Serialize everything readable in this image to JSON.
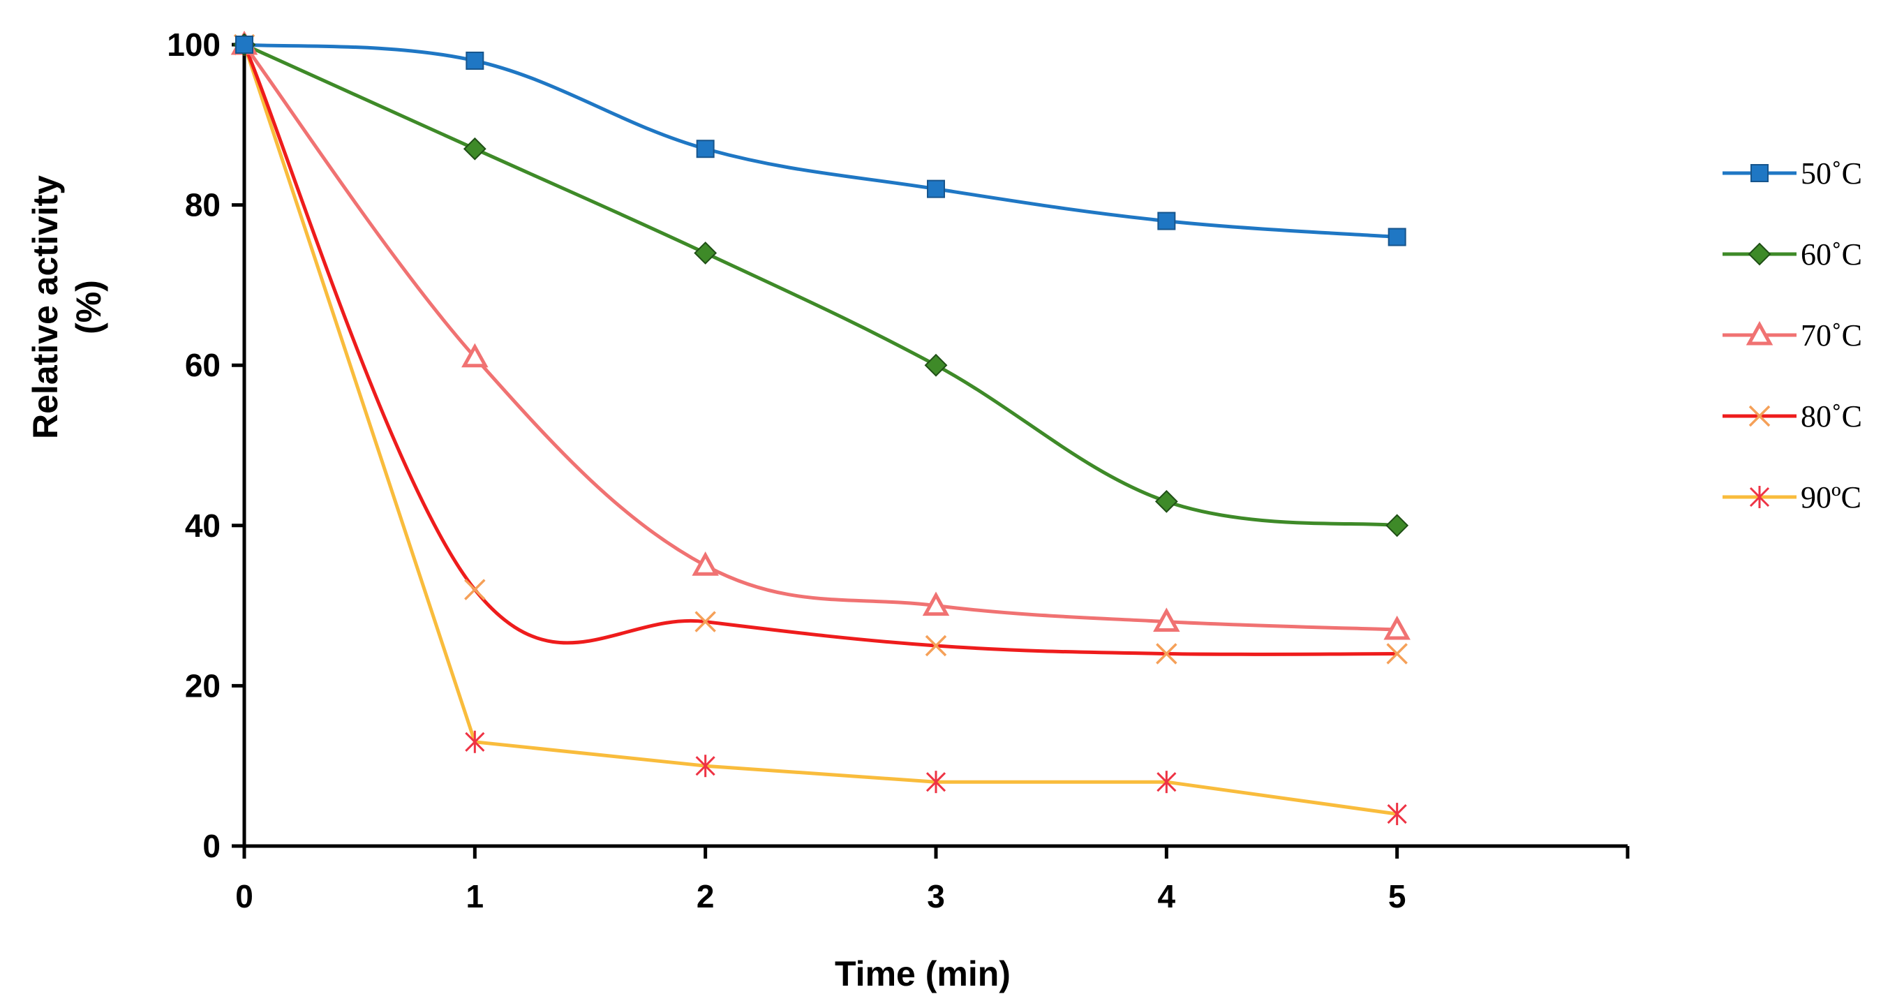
{
  "chart_data": {
    "type": "line",
    "title": "",
    "xlabel": "Time (min)",
    "ylabel_lines": [
      "Relative activity",
      "(%)"
    ],
    "x": [
      0,
      1,
      2,
      3,
      4,
      5
    ],
    "x_ticks": [
      "0",
      "1",
      "2",
      "3",
      "4",
      "5"
    ],
    "y_ticks": [
      "0",
      "20",
      "40",
      "60",
      "80",
      "100"
    ],
    "xlim": [
      0,
      6
    ],
    "ylim": [
      0,
      100
    ],
    "grid": false,
    "legend_position": "right",
    "series": [
      {
        "name": "50˚C",
        "values": [
          100,
          98,
          87,
          82,
          78,
          76
        ],
        "color": "#1f77c4",
        "marker": "square",
        "marker_color": "#1f77c4",
        "smooth": true
      },
      {
        "name": "60˚C",
        "values": [
          100,
          87,
          74,
          60,
          43,
          40
        ],
        "color": "#3e8a28",
        "marker": "diamond",
        "marker_color": "#3e8a28",
        "smooth": true
      },
      {
        "name": "70˚C",
        "values": [
          100,
          61,
          35,
          30,
          28,
          27
        ],
        "color": "#f07272",
        "marker": "triangle",
        "marker_color": "#f07272",
        "smooth": true
      },
      {
        "name": "80˚C",
        "values": [
          100,
          32,
          28,
          25,
          24,
          24
        ],
        "color": "#ee1c1c",
        "marker": "x",
        "marker_color": "#f5a058",
        "smooth": true
      },
      {
        "name": "90ºC",
        "values": [
          100,
          13,
          10,
          8,
          8,
          4
        ],
        "color": "#f9bc3c",
        "marker": "asterisk",
        "marker_color": "#ee3344",
        "smooth": false
      }
    ]
  }
}
